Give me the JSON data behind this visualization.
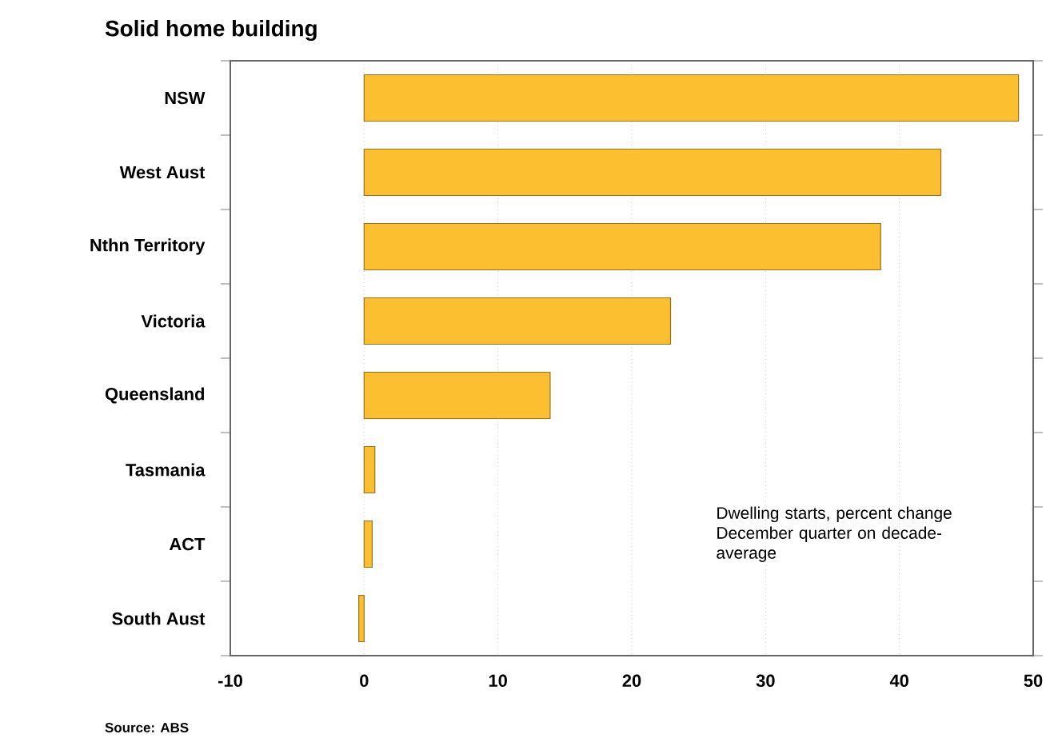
{
  "chart_data": {
    "type": "bar",
    "orientation": "horizontal",
    "title": "Solid home building",
    "categories": [
      "NSW",
      "West Aust",
      "Nthn Territory",
      "Victoria",
      "Queensland",
      "Tasmania",
      "ACT",
      "South Aust"
    ],
    "values": [
      48.9,
      43.1,
      38.6,
      22.9,
      13.9,
      0.8,
      0.6,
      -0.4
    ],
    "color": "#fbbf2f",
    "xlim": [
      -10,
      50
    ],
    "xticks": [
      -10,
      0,
      10,
      20,
      30,
      40,
      50
    ],
    "grid": "x",
    "annotations": [
      "Dwelling starts, percent change December quarter on decade-average",
      "Source: ABS"
    ]
  }
}
